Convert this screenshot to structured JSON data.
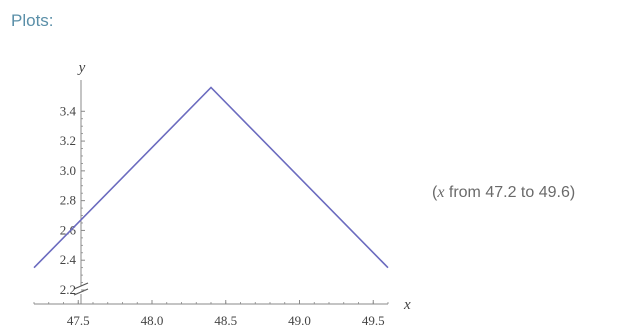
{
  "section_title": "Plots:",
  "range_note": {
    "open": "(",
    "variable": "x",
    "text": " from 47.2 to 49.6)"
  },
  "chart_data": {
    "type": "line",
    "xlabel": "x",
    "ylabel": "y",
    "xlim": [
      47.2,
      49.6
    ],
    "ylim": [
      2.2,
      3.6
    ],
    "xticks": [
      {
        "value": 47.5,
        "label": "47.5"
      },
      {
        "value": 48.0,
        "label": "48.0"
      },
      {
        "value": 48.5,
        "label": "48.5"
      },
      {
        "value": 49.0,
        "label": "49.0"
      },
      {
        "value": 49.5,
        "label": "49.5"
      }
    ],
    "yticks": [
      {
        "value": 2.2,
        "label": "2.2"
      },
      {
        "value": 2.4,
        "label": "2.4"
      },
      {
        "value": 2.6,
        "label": "2.6"
      },
      {
        "value": 2.8,
        "label": "2.8"
      },
      {
        "value": 3.0,
        "label": "3.0"
      },
      {
        "value": 3.2,
        "label": "3.2"
      },
      {
        "value": 3.4,
        "label": "3.4"
      }
    ],
    "axis_break": "y",
    "grid": false,
    "series": [
      {
        "color": "#6b6bbf",
        "x": [
          47.2,
          48.4,
          49.6
        ],
        "y": [
          2.35,
          3.56,
          2.35
        ]
      }
    ]
  }
}
